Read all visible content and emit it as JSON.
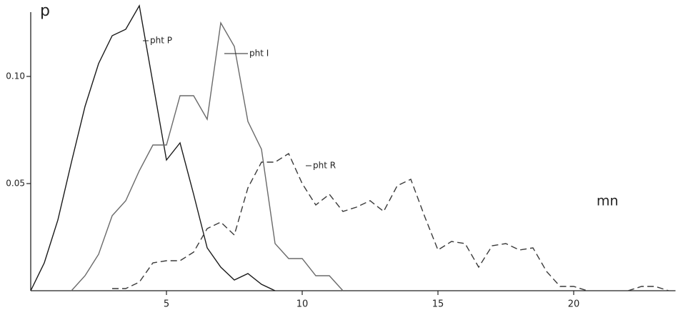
{
  "chart_data": {
    "type": "line",
    "y_label": "p",
    "x_label": "mn",
    "x": [
      0,
      0.5,
      1,
      1.5,
      2,
      2.5,
      3,
      3.5,
      4,
      4.5,
      5,
      5.5,
      6,
      6.5,
      7,
      7.5,
      8,
      8.5,
      9,
      9.5,
      10,
      10.5,
      11,
      11.5,
      12,
      12.5,
      13,
      13.5,
      14,
      14.5,
      15,
      15.5,
      16,
      16.5,
      17,
      17.5,
      18,
      18.5,
      19,
      19.5,
      20,
      20.5,
      21,
      21.5,
      22,
      22.5,
      23,
      23.5
    ],
    "series": [
      {
        "name": "pht P",
        "color": "#1a1a1a",
        "dash": false,
        "values": [
          0,
          0.013,
          0.033,
          0.06,
          0.086,
          0.106,
          0.119,
          0.122,
          0.133,
          0.097,
          0.061,
          0.069,
          0.045,
          0.02,
          0.011,
          0.005,
          0.008,
          0.003,
          0,
          null,
          null,
          null,
          null,
          null,
          null,
          null,
          null,
          null,
          null,
          null,
          null,
          null,
          null,
          null,
          null,
          null,
          null,
          null,
          null,
          null,
          null,
          null,
          null,
          null,
          null,
          null,
          null,
          null
        ]
      },
      {
        "name": "pht I",
        "color": "#6a6a6a",
        "dash": false,
        "values": [
          null,
          null,
          null,
          0,
          0.007,
          0.017,
          0.035,
          0.042,
          0.056,
          0.068,
          0.068,
          0.091,
          0.091,
          0.08,
          0.125,
          0.114,
          0.079,
          0.066,
          0.022,
          0.015,
          0.015,
          0.007,
          0.007,
          0,
          null,
          null,
          null,
          null,
          null,
          null,
          null,
          null,
          null,
          null,
          null,
          null,
          null,
          null,
          null,
          null,
          null,
          null,
          null,
          null,
          null,
          null,
          null,
          null
        ]
      },
      {
        "name": "pht R",
        "color": "#3a3a3a",
        "dash": true,
        "values": [
          null,
          null,
          null,
          null,
          null,
          null,
          0.001,
          0.001,
          0.004,
          0.013,
          0.014,
          0.014,
          0.018,
          0.029,
          0.032,
          0.026,
          0.048,
          0.06,
          0.06,
          0.064,
          0.05,
          0.04,
          0.045,
          0.037,
          0.039,
          0.042,
          0.037,
          0.049,
          0.052,
          0.035,
          0.019,
          0.023,
          0.022,
          0.011,
          0.021,
          0.022,
          0.019,
          0.02,
          0.009,
          0.002,
          0.002,
          0,
          null,
          null,
          0,
          0.002,
          0.002,
          0
        ]
      }
    ],
    "xlim": [
      0,
      23.75
    ],
    "ylim": [
      0,
      0.13
    ],
    "xticks": [
      5,
      10,
      15,
      20
    ],
    "yticks": [
      0.05,
      {
        "value": 0.1,
        "label": "0.10"
      }
    ]
  }
}
